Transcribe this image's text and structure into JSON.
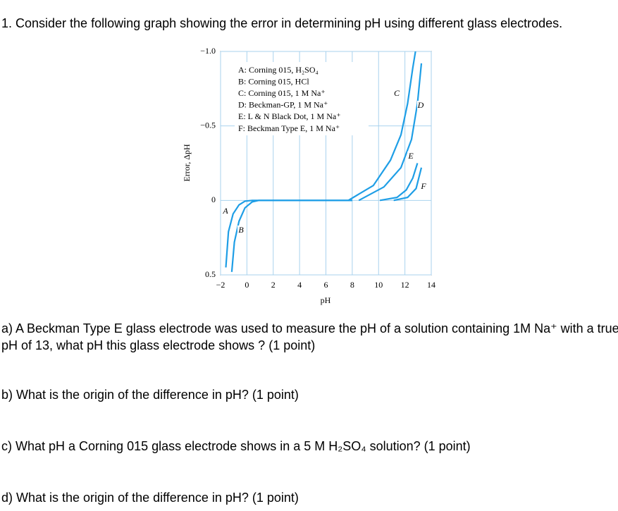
{
  "question": "1. Consider the following graph showing the error in determining pH using different glass electrodes.",
  "chart_data": {
    "type": "line",
    "xlabel": "pH",
    "ylabel": "Error, ΔpH",
    "xlim": [
      -2,
      14
    ],
    "ylim": [
      -1,
      0.5
    ],
    "y_inverted": true,
    "grid": true,
    "xticks": [
      {
        "value": -2,
        "label": "−2"
      },
      0,
      2,
      4,
      6,
      8,
      10,
      12,
      14
    ],
    "yticks": [
      {
        "value": -1,
        "label": "−1.0"
      },
      {
        "value": -0.5,
        "label": "−0.5"
      },
      0,
      0.5
    ],
    "legend": [
      "A: Corning 015, H₂SO₄",
      "B: Corning 015, HCl",
      "C: Corning 015, 1 M Na⁺",
      "D: Beckman-GP, 1 M Na⁺",
      "E: L & N Black Dot, 1 M Na⁺",
      "F: Beckman Type E, 1 M Na⁺"
    ],
    "color": "#1e9ee6",
    "series": [
      {
        "name": "A",
        "x": [
          -1.6,
          -1.4,
          -1.05,
          -0.6,
          -0.15,
          0.4,
          8
        ],
        "values": [
          0.45,
          0.21,
          0.09,
          0.03,
          0.005,
          0,
          0
        ]
      },
      {
        "name": "B",
        "x": [
          -1.15,
          -0.95,
          -0.6,
          -0.15,
          0.4,
          0.9,
          8
        ],
        "values": [
          0.48,
          0.28,
          0.14,
          0.05,
          0.01,
          0,
          0
        ]
      },
      {
        "name": "C",
        "x": [
          7.7,
          9.6,
          10.9,
          11.7,
          12.2,
          12.6,
          12.8
        ],
        "values": [
          0,
          -0.1,
          -0.27,
          -0.44,
          -0.65,
          -0.89,
          -1
        ]
      },
      {
        "name": "D",
        "x": [
          8.5,
          10.4,
          11.7,
          12.5,
          12.95,
          13.25
        ],
        "values": [
          0,
          -0.09,
          -0.22,
          -0.41,
          -0.65,
          -0.92
        ]
      },
      {
        "name": "E",
        "x": [
          10.1,
          11.4,
          12.1,
          12.6,
          12.95
        ],
        "values": [
          0,
          -0.02,
          -0.07,
          -0.15,
          -0.25
        ]
      },
      {
        "name": "F",
        "x": [
          11.15,
          12.2,
          12.85,
          13.25
        ],
        "values": [
          0,
          -0.02,
          -0.08,
          -0.22
        ]
      }
    ]
  },
  "parts": [
    "a) A Beckman Type E glass electrode was used to measure the pH of a solution containing 1M Na⁺ with a true pH of 13, what pH this glass electrode shows ? (1 point)",
    "b) What is the origin of the difference in pH? (1 point)",
    "c) What pH a Corning 015 glass electrode shows in a 5 M H₂SO₄ solution? (1 point)",
    "d) What is the origin of the difference in pH? (1 point)"
  ]
}
